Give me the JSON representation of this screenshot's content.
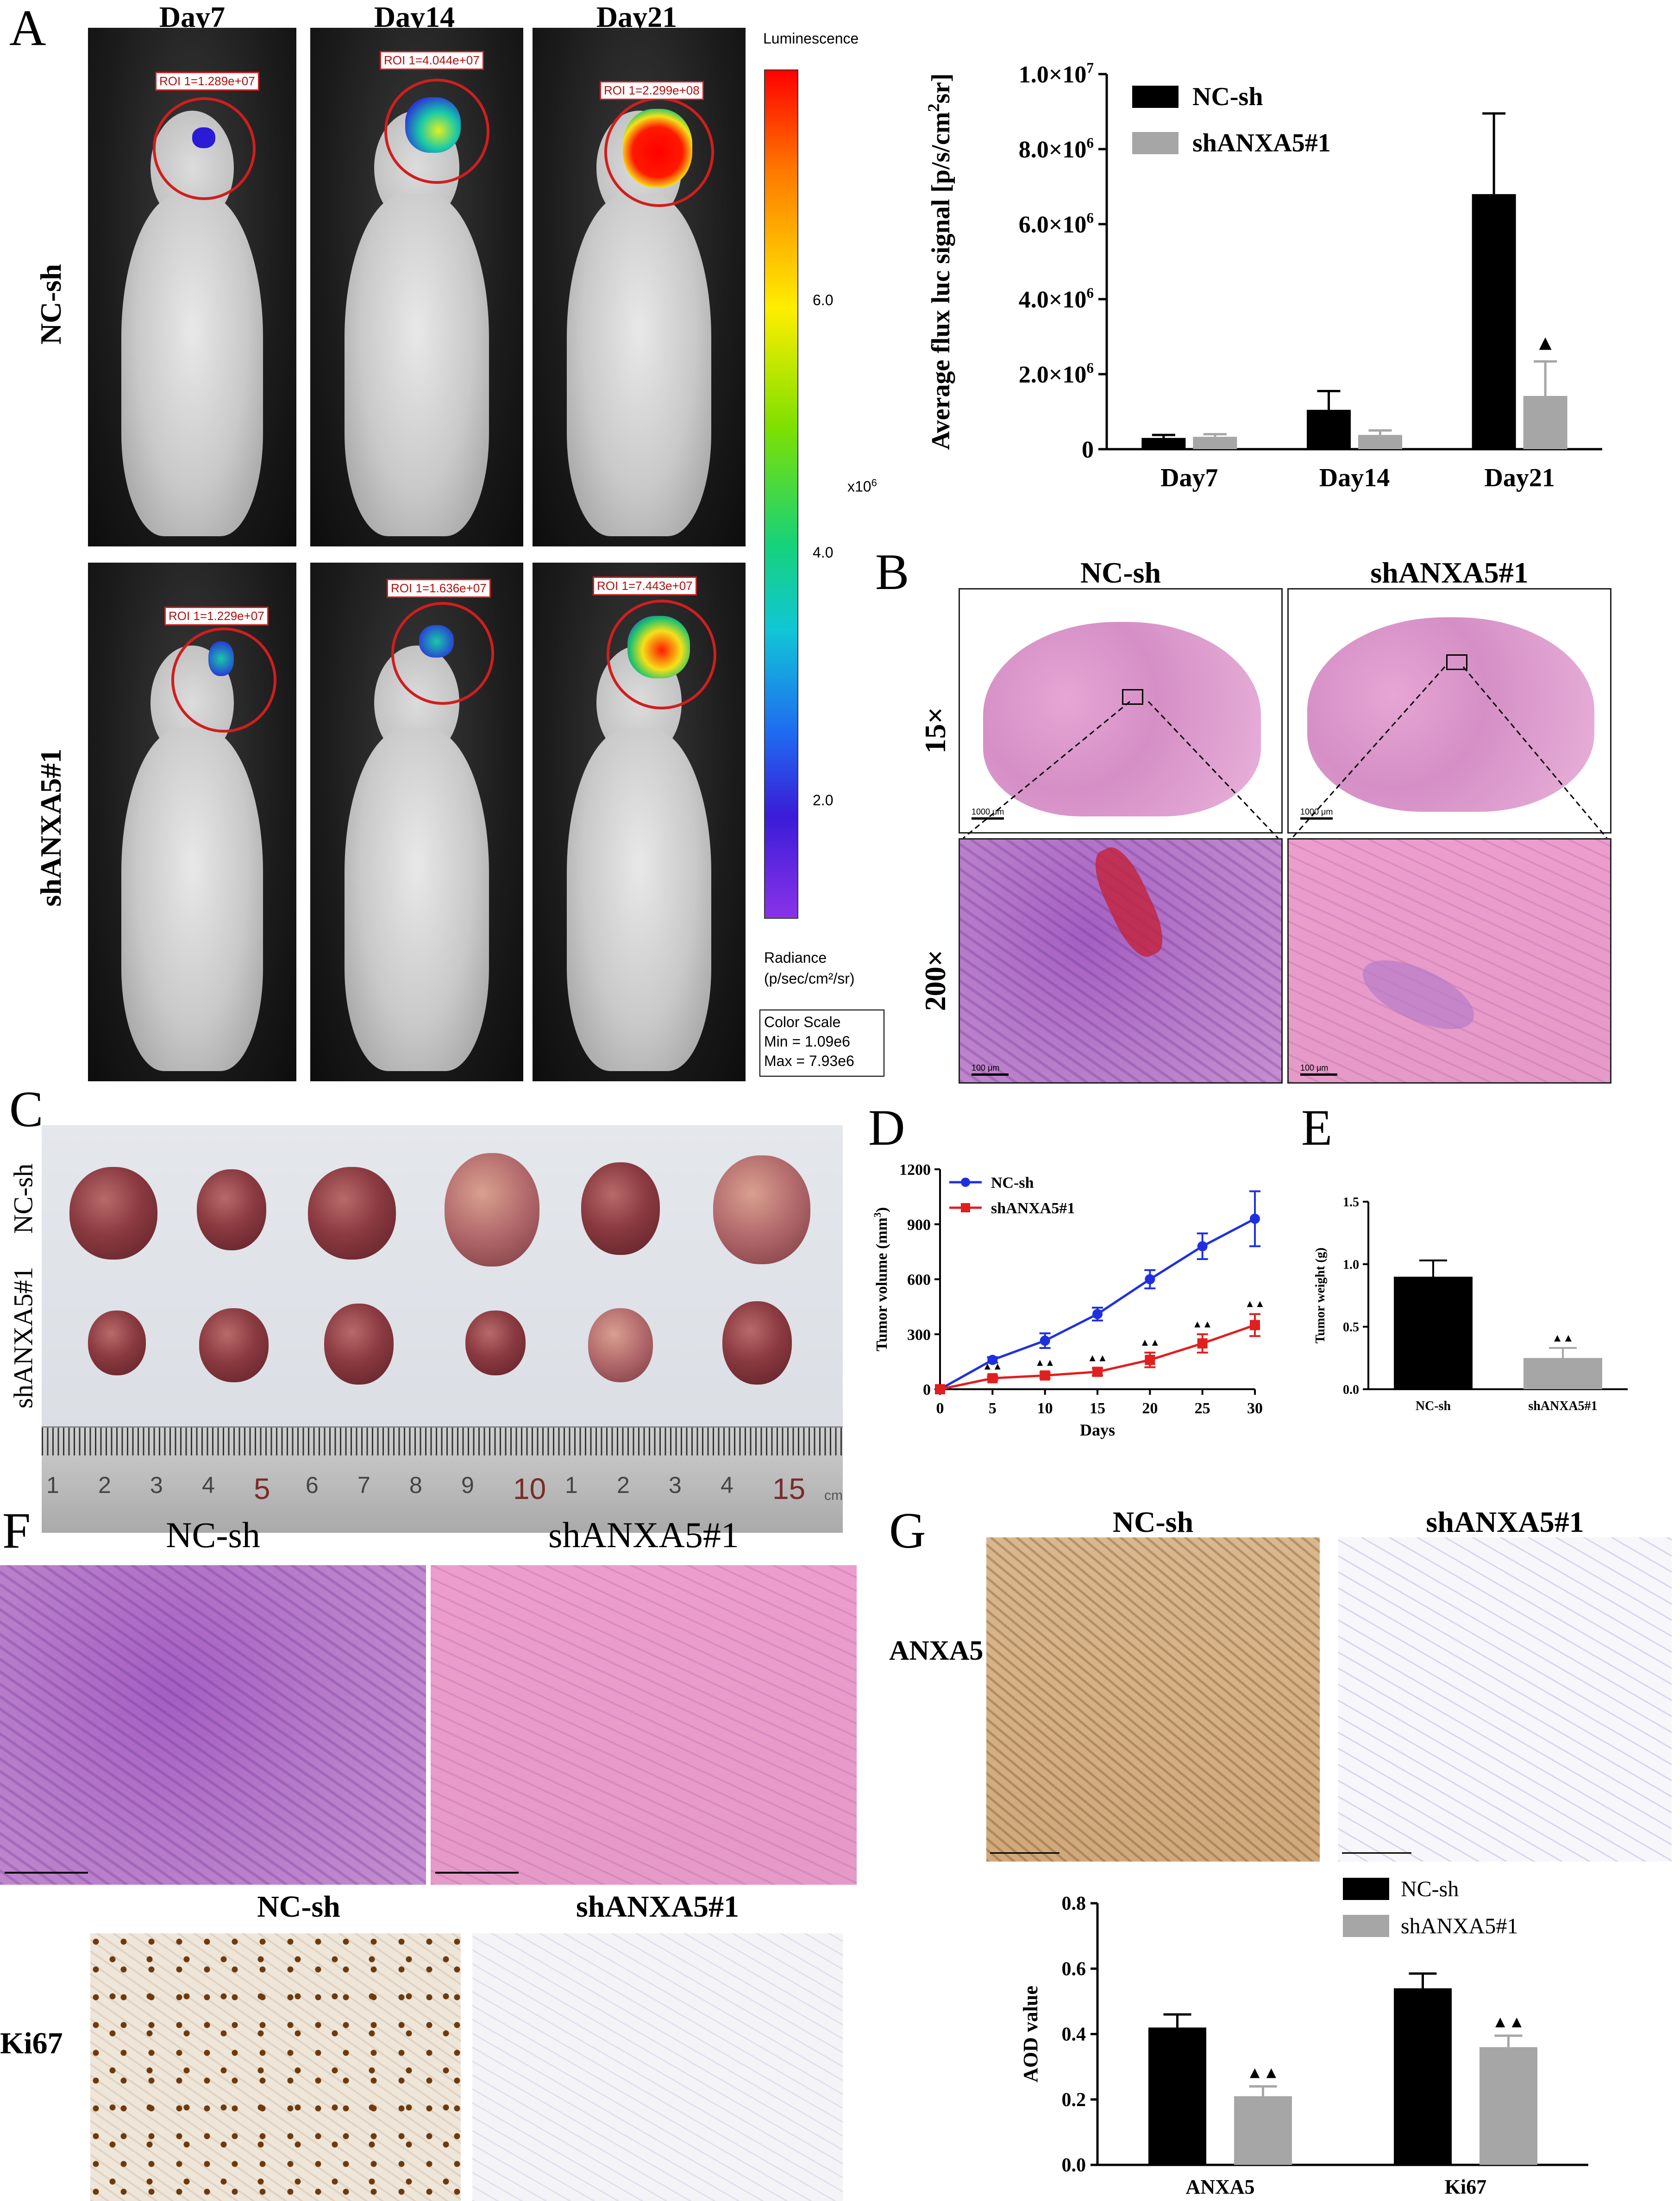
{
  "panels": {
    "A": {
      "label": "A",
      "columns": [
        "Day7",
        "Day14",
        "Day21"
      ],
      "rows": [
        "NC-sh",
        "shANXA5#1"
      ],
      "roi": [
        [
          "ROI 1=1.289e+07",
          "ROI 1=4.044e+07",
          "ROI 1=2.299e+08"
        ],
        [
          "ROI 1=1.229e+07",
          "ROI 1=1.636e+07",
          "ROI 1=7.443e+07"
        ]
      ],
      "colorbar": {
        "title": "Luminescence",
        "ticks": [
          "6.0",
          "4.0",
          "2.0"
        ],
        "unit_label": "x10",
        "unit_exp": "6",
        "radiance": "Radiance",
        "radiance_unit": "(p/sec/cm²/sr)",
        "scale_title": "Color Scale",
        "scale_min": "Min = 1.09e6",
        "scale_max": "Max = 7.93e6"
      }
    },
    "B": {
      "label": "B",
      "columns": [
        "NC-sh",
        "shANXA5#1"
      ],
      "rows": [
        "15×",
        "200×"
      ],
      "scale_top": "1000 μm",
      "scale_bottom": "100 μm"
    },
    "C": {
      "label": "C",
      "rows": [
        "NC-sh",
        "shANXA5#1"
      ],
      "ruler": [
        "1",
        "2",
        "3",
        "4",
        "5",
        "6",
        "7",
        "8",
        "9",
        "10",
        "1",
        "2",
        "3",
        "4",
        "15"
      ],
      "ruler_unit": "cm"
    },
    "D": {
      "label": "D"
    },
    "E": {
      "label": "E"
    },
    "F": {
      "label": "F",
      "columns": [
        "NC-sh",
        "shANXA5#1"
      ]
    },
    "G": {
      "label": "G",
      "columns": [
        "NC-sh",
        "shANXA5#1"
      ],
      "row": "ANXA5"
    },
    "Ki67": {
      "columns": [
        "NC-sh",
        "shANXA5#1"
      ],
      "row": "Ki67"
    }
  },
  "chart_data": [
    {
      "id": "A-bar",
      "type": "bar",
      "categories": [
        "Day7",
        "Day14",
        "Day21"
      ],
      "ylabel_parts": [
        "Average flux luc signal [p/s/cm",
        "2",
        "sr]"
      ],
      "ylim": [
        0,
        10000000
      ],
      "yticks": [
        {
          "value": 0,
          "label": "0",
          "exp": ""
        },
        {
          "value": 2000000,
          "label": "2.0×10",
          "exp": "6"
        },
        {
          "value": 4000000,
          "label": "4.0×10",
          "exp": "6"
        },
        {
          "value": 6000000,
          "label": "6.0×10",
          "exp": "6"
        },
        {
          "value": 8000000,
          "label": "8.0×10",
          "exp": "6"
        },
        {
          "value": 10000000,
          "label": "1.0×10",
          "exp": "7"
        }
      ],
      "series": [
        {
          "name": "NC-sh",
          "color": "#000000",
          "values": [
            300000,
            1050000,
            6800000
          ],
          "errors": [
            80000,
            500000,
            2150000
          ]
        },
        {
          "name": "shANXA5#1",
          "color": "#a6a6a6",
          "values": [
            330000,
            380000,
            1420000
          ],
          "errors": [
            70000,
            120000,
            920000
          ]
        }
      ],
      "annotations": [
        {
          "category": "Day21",
          "series": "shANXA5#1",
          "text": "▲"
        }
      ],
      "legend": "top-left"
    },
    {
      "id": "D-line",
      "type": "line",
      "xlabel": "Days",
      "ylabel_parts": [
        "Tumor volume (mm",
        "3",
        ")"
      ],
      "x": [
        0,
        5,
        10,
        15,
        20,
        25,
        30
      ],
      "xlim": [
        0,
        30
      ],
      "ylim": [
        0,
        1200
      ],
      "yticks": [
        0,
        300,
        600,
        900,
        1200
      ],
      "series": [
        {
          "name": "NC-sh",
          "color": "#1f2fe0",
          "marker": "circle",
          "values": [
            0,
            160,
            265,
            410,
            600,
            780,
            930
          ],
          "errors": [
            0,
            15,
            40,
            35,
            50,
            70,
            150
          ]
        },
        {
          "name": "shANXA5#1",
          "color": "#e01f1f",
          "marker": "square",
          "values": [
            0,
            60,
            75,
            95,
            160,
            250,
            350
          ],
          "errors": [
            0,
            10,
            15,
            20,
            40,
            50,
            60
          ]
        }
      ],
      "annotation_text": "▲▲",
      "annotation_x": [
        5,
        10,
        15,
        20,
        25,
        30
      ],
      "legend": "top-left"
    },
    {
      "id": "E-bar",
      "type": "bar",
      "categories": [
        "NC-sh",
        "shANXA5#1"
      ],
      "ylabel": "Tumor weight (g)",
      "ylim": [
        0,
        1.5
      ],
      "yticks": [
        "0.0",
        "0.5",
        "1.0",
        "1.5"
      ],
      "values": [
        0.9,
        0.25
      ],
      "errors": [
        0.13,
        0.08
      ],
      "colors": [
        "#000000",
        "#a6a6a6"
      ],
      "annotations": [
        {
          "category": "shANXA5#1",
          "text": "▲▲"
        }
      ]
    },
    {
      "id": "G-bar",
      "type": "bar",
      "categories": [
        "ANXA5",
        "Ki67"
      ],
      "ylabel": "AOD value",
      "ylim": [
        0,
        0.8
      ],
      "yticks": [
        "0.0",
        "0.2",
        "0.4",
        "0.6",
        "0.8"
      ],
      "series": [
        {
          "name": "NC-sh",
          "color": "#000000",
          "values": [
            0.42,
            0.54
          ],
          "errors": [
            0.04,
            0.045
          ]
        },
        {
          "name": "shANXA5#1",
          "color": "#a6a6a6",
          "values": [
            0.21,
            0.36
          ],
          "errors": [
            0.03,
            0.035
          ]
        }
      ],
      "annotations": [
        {
          "category": "ANXA5",
          "series": "shANXA5#1",
          "text": "▲▲"
        },
        {
          "category": "Ki67",
          "series": "shANXA5#1",
          "text": "▲▲"
        }
      ],
      "legend": "top-right"
    }
  ]
}
